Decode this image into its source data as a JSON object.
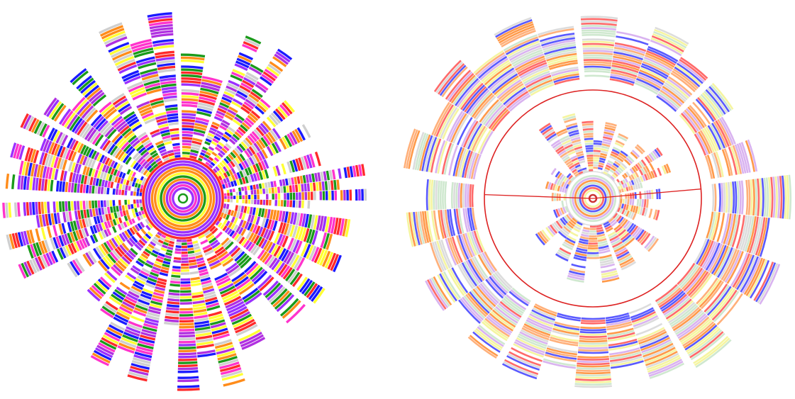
{
  "figure": {
    "panels": [
      {
        "id": "left",
        "style": "saturated",
        "band_colors": [
          "#ff8c1a",
          "#ffffff",
          "#b030e0",
          "#ffff33",
          "#1a1aff",
          "#ff2a2a",
          "#ff33cc",
          "#cfcfcf",
          "#1a9a1a",
          "#9b30ff"
        ],
        "center_ring_color": "#1a9a1a"
      },
      {
        "id": "right",
        "style": "pastel",
        "band_colors": [
          "#ffb07a",
          "#ffffff",
          "#d9b3f0",
          "#f5f5a0",
          "#5a5aff",
          "#ff6a6a",
          "#cfe8cf",
          "#ff9a4a",
          "#dcdcdc"
        ],
        "center_ring_color": "#cc3333",
        "highlight_color": "#dd2222"
      }
    ]
  }
}
